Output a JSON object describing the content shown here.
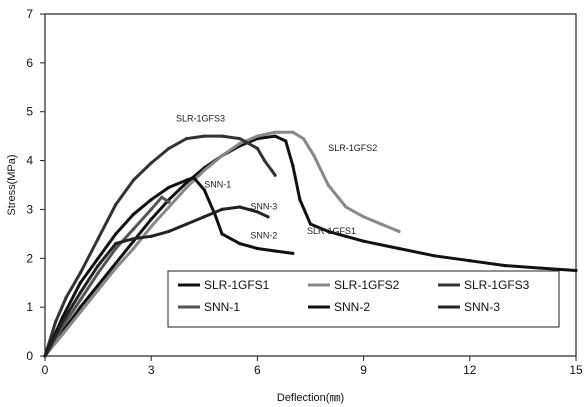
{
  "chart_data": {
    "type": "line",
    "title": "",
    "xlabel": "Deflection(㎜)",
    "ylabel": "Stress(MPa)",
    "xlim": [
      0,
      15
    ],
    "ylim": [
      0,
      7
    ],
    "xticks": [
      "0",
      "3",
      "6",
      "9",
      "12",
      "15"
    ],
    "yticks": [
      "0",
      "1",
      "2",
      "3",
      "4",
      "5",
      "6",
      "7"
    ],
    "grid": false,
    "legend_position": "lower-right",
    "series": [
      {
        "name": "SLR-1GFS1",
        "color": "#111111",
        "x": [
          0,
          0.5,
          1,
          1.5,
          2,
          2.5,
          3,
          3.5,
          4,
          4.5,
          5,
          5.5,
          6,
          6.5,
          6.8,
          7.0,
          7.2,
          7.5,
          8,
          8.5,
          9,
          10,
          11,
          12,
          13,
          14,
          15
        ],
        "y": [
          0,
          0.5,
          1.0,
          1.45,
          1.9,
          2.35,
          2.8,
          3.2,
          3.55,
          3.85,
          4.1,
          4.3,
          4.45,
          4.5,
          4.4,
          3.9,
          3.2,
          2.7,
          2.55,
          2.45,
          2.35,
          2.2,
          2.05,
          1.95,
          1.85,
          1.8,
          1.75
        ]
      },
      {
        "name": "SLR-1GFS2",
        "color": "#888888",
        "x": [
          0,
          0.5,
          1,
          1.5,
          2,
          2.5,
          3,
          3.5,
          4,
          4.5,
          5,
          5.5,
          6,
          6.5,
          7,
          7.3,
          7.6,
          8,
          8.5,
          9,
          9.5,
          10
        ],
        "y": [
          0,
          0.45,
          0.9,
          1.35,
          1.8,
          2.2,
          2.65,
          3.05,
          3.45,
          3.8,
          4.1,
          4.35,
          4.5,
          4.58,
          4.58,
          4.45,
          4.1,
          3.5,
          3.05,
          2.85,
          2.7,
          2.55
        ]
      },
      {
        "name": "SLR-1GFS3",
        "color": "#333333",
        "x": [
          0,
          0.3,
          0.6,
          1,
          1.5,
          2,
          2.5,
          3,
          3.5,
          4,
          4.5,
          5,
          5.5,
          6,
          6.2,
          6.4,
          6.5
        ],
        "y": [
          0,
          0.7,
          1.2,
          1.7,
          2.4,
          3.1,
          3.6,
          3.95,
          4.25,
          4.45,
          4.5,
          4.5,
          4.45,
          4.25,
          4.0,
          3.8,
          3.7
        ]
      },
      {
        "name": "SNN-1",
        "color": "#555555",
        "x": [
          0,
          0.5,
          1,
          1.5,
          2,
          2.5,
          3,
          3.3,
          3.5
        ],
        "y": [
          0,
          0.6,
          1.15,
          1.7,
          2.2,
          2.6,
          3.0,
          3.25,
          3.15
        ]
      },
      {
        "name": "SNN-2",
        "color": "#111111",
        "x": [
          0,
          0.5,
          1,
          1.5,
          2,
          2.5,
          3,
          3.5,
          4,
          4.2,
          4.5,
          4.8,
          5,
          5.5,
          6,
          6.5,
          7
        ],
        "y": [
          0,
          0.8,
          1.5,
          2.0,
          2.5,
          2.9,
          3.2,
          3.45,
          3.6,
          3.65,
          3.4,
          2.9,
          2.5,
          2.3,
          2.2,
          2.15,
          2.1
        ]
      },
      {
        "name": "SNN-3",
        "color": "#222222",
        "x": [
          0,
          0.5,
          1,
          1.5,
          2,
          2.5,
          3,
          3.5,
          4,
          4.5,
          5,
          5.5,
          6,
          6.3
        ],
        "y": [
          0,
          0.7,
          1.3,
          1.85,
          2.3,
          2.4,
          2.45,
          2.55,
          2.7,
          2.85,
          3.0,
          3.05,
          2.95,
          2.85
        ]
      }
    ],
    "annotations": [
      {
        "text": "SLR-1GFS3",
        "x": 3.7,
        "y": 4.8
      },
      {
        "text": "SLR-1GFS2",
        "x": 8.0,
        "y": 4.2
      },
      {
        "text": "SNN-1",
        "x": 4.5,
        "y": 3.45
      },
      {
        "text": "SNN-3",
        "x": 5.8,
        "y": 3.0
      },
      {
        "text": "SLR-1GFS1",
        "x": 7.4,
        "y": 2.5
      },
      {
        "text": "SNN-2",
        "x": 5.8,
        "y": 2.4
      }
    ]
  }
}
